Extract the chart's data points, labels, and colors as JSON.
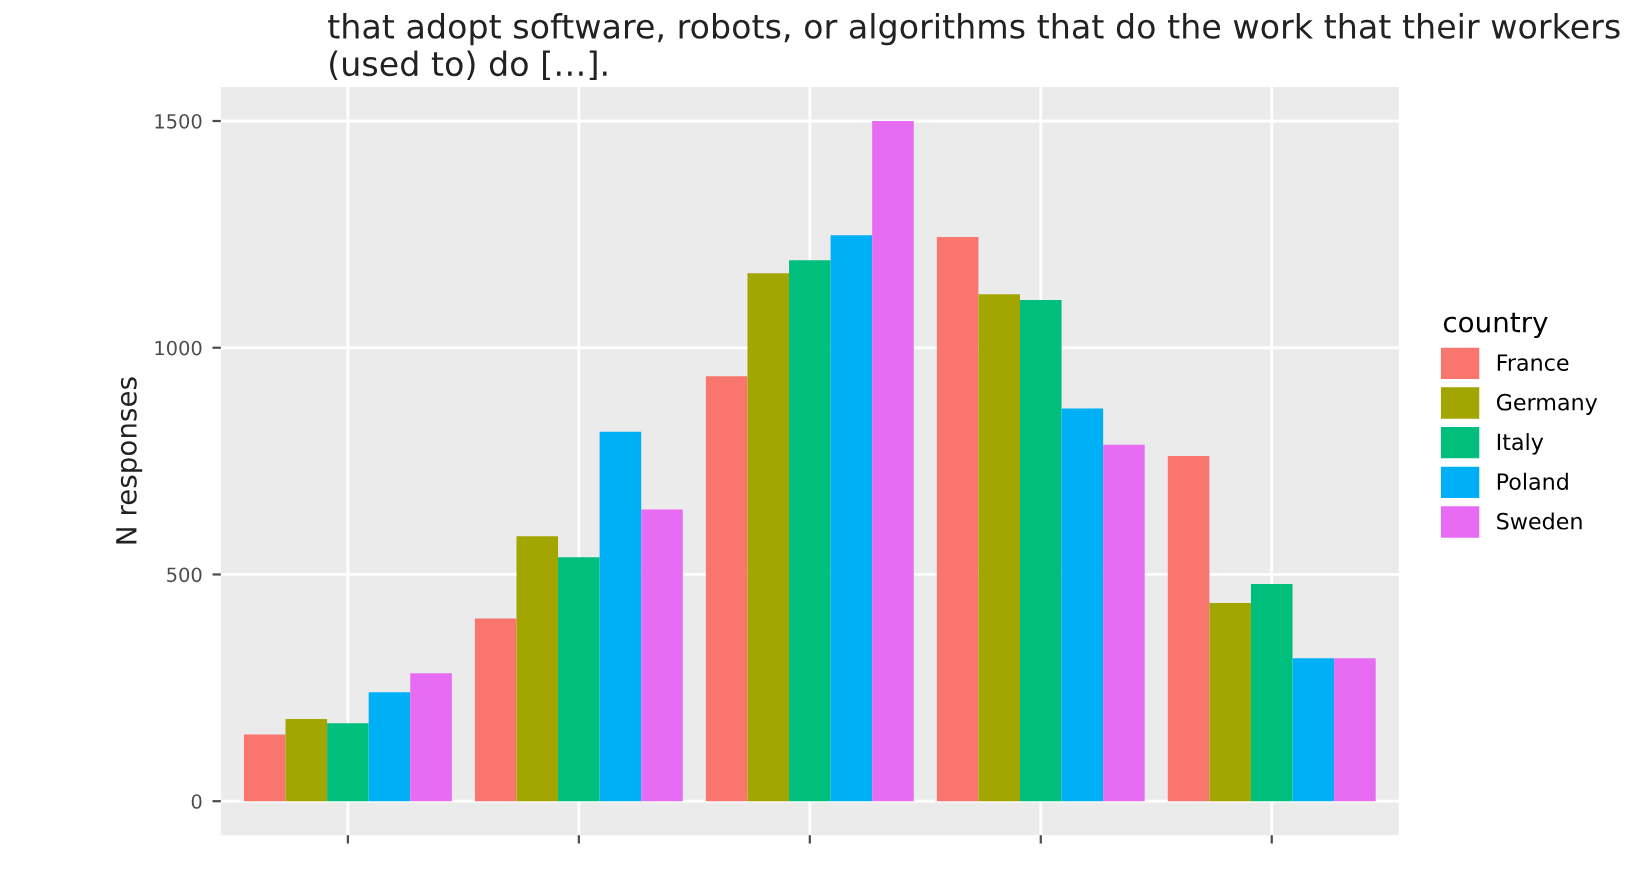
{
  "chart_data": {
    "type": "bar",
    "title": "that adopt software, robots, or algorithms that do the work that their workers (used to) do […].",
    "ylabel": "N responses",
    "legend_title": "country",
    "categories": [
      null,
      null,
      null,
      null,
      null
    ],
    "series": [
      {
        "name": "France",
        "color": "#f8766d",
        "values": [
          147,
          403,
          937,
          1244,
          761
        ]
      },
      {
        "name": "Germany",
        "color": "#a3a500",
        "values": [
          181,
          584,
          1164,
          1118,
          437
        ]
      },
      {
        "name": "Italy",
        "color": "#00bf7d",
        "values": [
          172,
          538,
          1193,
          1105,
          479
        ]
      },
      {
        "name": "Poland",
        "color": "#00b0f6",
        "values": [
          240,
          815,
          1248,
          866,
          315
        ]
      },
      {
        "name": "Sweden",
        "color": "#e76bf3",
        "values": [
          282,
          643,
          1500,
          786,
          315
        ]
      }
    ],
    "ylim": [
      -75,
      1575
    ],
    "yticks": [
      0,
      500,
      1000,
      1500
    ],
    "grid": true,
    "legend": "right"
  }
}
